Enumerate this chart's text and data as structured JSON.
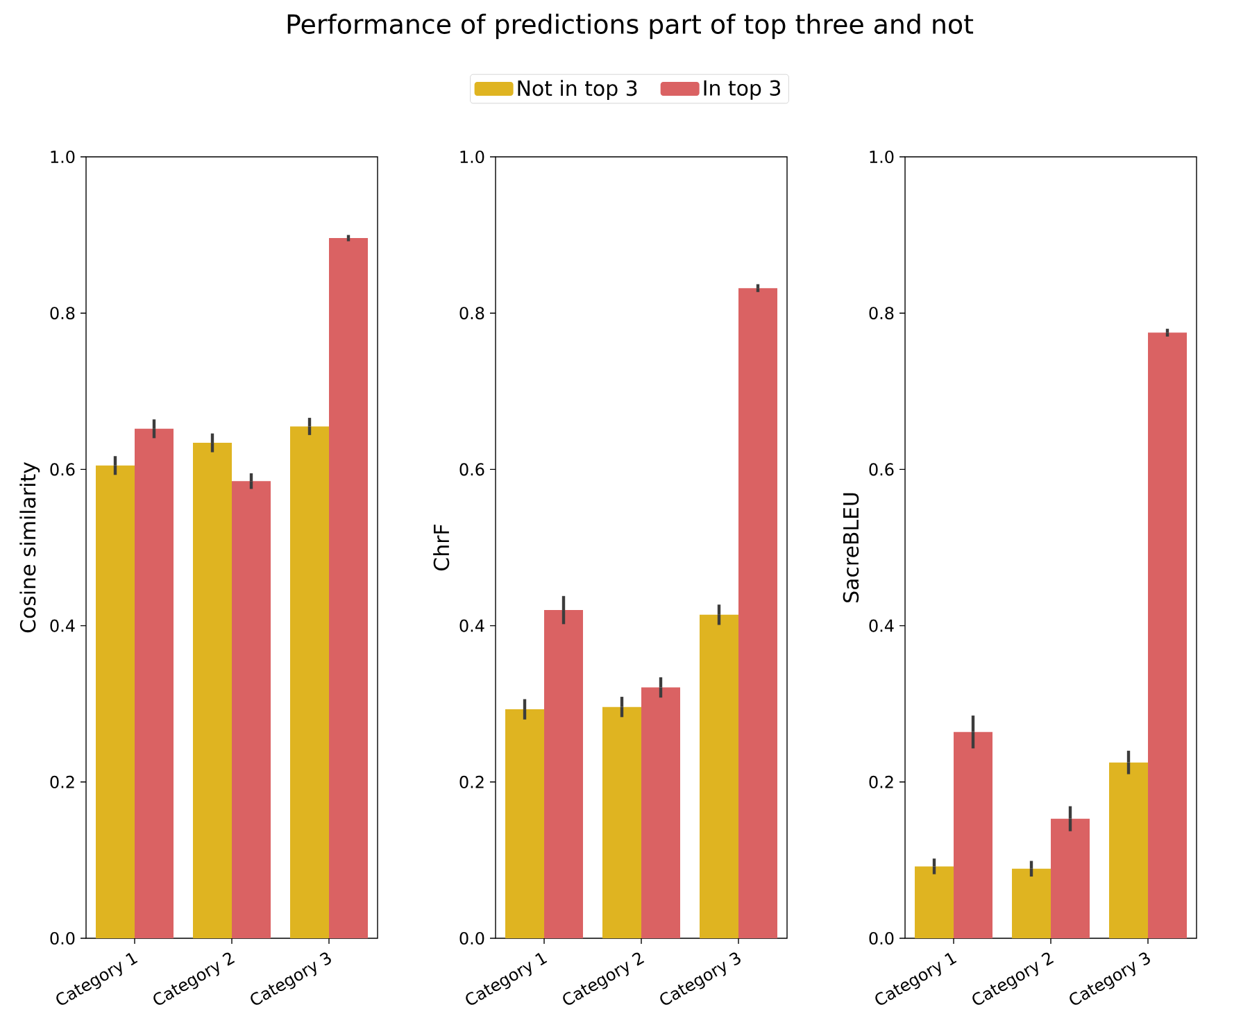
{
  "chart_data": [
    {
      "type": "bar",
      "title": "Performance of predictions part of top three and not",
      "legend": "top",
      "categories": [
        "Category 1",
        "Category 2",
        "Category 3"
      ],
      "ylabel": "Cosine similarity",
      "ylim": [
        0,
        1
      ],
      "yticks": [
        {
          "value": 0,
          "label": "0.0"
        },
        {
          "value": 0.2,
          "label": "0.2"
        },
        {
          "value": 0.4,
          "label": "0.4"
        },
        {
          "value": 0.6,
          "label": "0.6"
        },
        {
          "value": 0.8,
          "label": "0.8"
        },
        {
          "value": 1,
          "label": "1.0"
        }
      ],
      "series": [
        {
          "name": "Not in top 3",
          "color": "#dfb421",
          "values": [
            0.605,
            0.634,
            0.655
          ],
          "errors": [
            0.012,
            0.012,
            0.011
          ]
        },
        {
          "name": "In top 3",
          "color": "#da6263",
          "values": [
            0.652,
            0.585,
            0.896
          ],
          "errors": [
            0.012,
            0.01,
            0.004
          ]
        }
      ]
    },
    {
      "type": "bar",
      "categories": [
        "Category 1",
        "Category 2",
        "Category 3"
      ],
      "ylabel": "ChrF",
      "ylim": [
        0,
        1
      ],
      "yticks": [
        {
          "value": 0,
          "label": "0.0"
        },
        {
          "value": 0.2,
          "label": "0.2"
        },
        {
          "value": 0.4,
          "label": "0.4"
        },
        {
          "value": 0.6,
          "label": "0.6"
        },
        {
          "value": 0.8,
          "label": "0.8"
        },
        {
          "value": 1,
          "label": "1.0"
        }
      ],
      "series": [
        {
          "color": "#dfb421",
          "values": [
            0.293,
            0.296,
            0.414
          ],
          "errors": [
            0.013,
            0.013,
            0.013
          ]
        },
        {
          "color": "#da6263",
          "values": [
            0.42,
            0.321,
            0.832
          ],
          "errors": [
            0.018,
            0.013,
            0.005
          ]
        }
      ]
    },
    {
      "type": "bar",
      "categories": [
        "Category 1",
        "Category 2",
        "Category 3"
      ],
      "ylabel": "SacreBLEU",
      "ylim": [
        0,
        1
      ],
      "yticks": [
        {
          "value": 0,
          "label": "0.0"
        },
        {
          "value": 0.2,
          "label": "0.2"
        },
        {
          "value": 0.4,
          "label": "0.4"
        },
        {
          "value": 0.6,
          "label": "0.6"
        },
        {
          "value": 0.8,
          "label": "0.8"
        },
        {
          "value": 1,
          "label": "1.0"
        }
      ],
      "series": [
        {
          "color": "#dfb421",
          "values": [
            0.092,
            0.089,
            0.225
          ],
          "errors": [
            0.01,
            0.01,
            0.015
          ]
        },
        {
          "color": "#da6263",
          "values": [
            0.264,
            0.153,
            0.775
          ],
          "errors": [
            0.021,
            0.016,
            0.005
          ]
        }
      ]
    }
  ]
}
